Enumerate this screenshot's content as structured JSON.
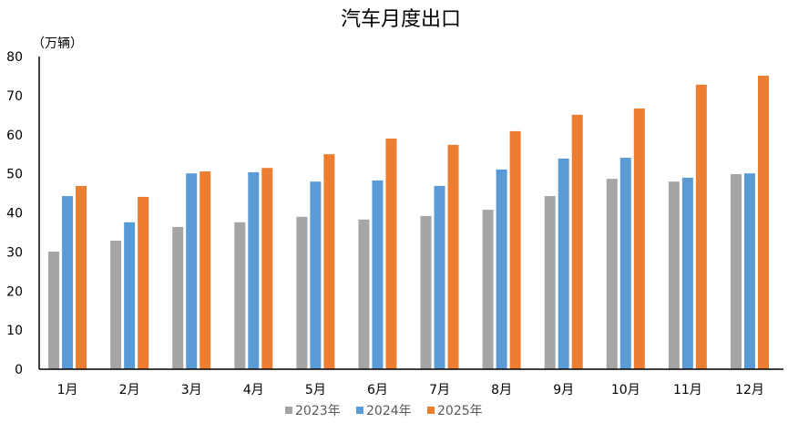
{
  "chart_data": {
    "type": "bar",
    "title": "汽车月度出口",
    "ylabel": "（万辆）",
    "xlabel": "",
    "categories": [
      "1月",
      "2月",
      "3月",
      "4月",
      "5月",
      "6月",
      "7月",
      "8月",
      "9月",
      "10月",
      "11月",
      "12月"
    ],
    "series": [
      {
        "name": "2023年",
        "color": "#A5A5A5",
        "values": [
          30.1,
          32.9,
          36.4,
          37.6,
          39.0,
          38.3,
          39.2,
          40.8,
          44.3,
          48.7,
          48.0,
          49.9
        ]
      },
      {
        "name": "2024年",
        "color": "#5B9BD5",
        "values": [
          44.3,
          37.6,
          50.1,
          50.4,
          48.0,
          48.3,
          46.9,
          51.1,
          53.9,
          54.1,
          49.0,
          50.1
        ]
      },
      {
        "name": "2025年",
        "color": "#ED7D31",
        "values": [
          46.9,
          44.1,
          50.6,
          51.5,
          55.0,
          59.0,
          57.4,
          60.9,
          65.1,
          66.7,
          72.8,
          75.1
        ]
      }
    ],
    "ylim": [
      0,
      80
    ],
    "yticks": [
      0,
      10,
      20,
      30,
      40,
      50,
      60,
      70,
      80
    ],
    "grid": false,
    "legend": "bottom"
  }
}
